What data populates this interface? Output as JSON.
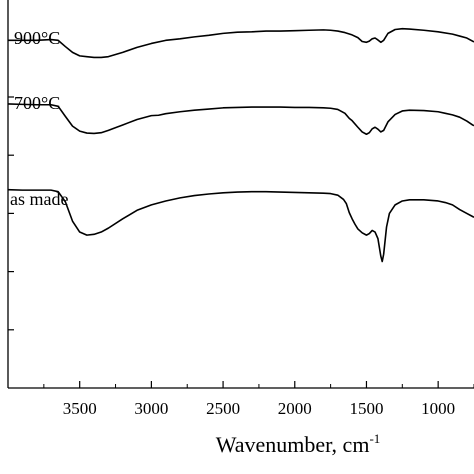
{
  "chart_data": {
    "type": "line",
    "title": "",
    "xlabel": "Wavenumber, cm",
    "xlabel_superscript": "-1",
    "ylabel": "",
    "x_reversed": true,
    "xlim": [
      4000,
      750
    ],
    "xticks": [
      3500,
      3000,
      2500,
      2000,
      1500,
      1000
    ],
    "xtick_labels": [
      "3500",
      "3000",
      "2500",
      "2000",
      "1500",
      "1000"
    ],
    "ylim": [
      0,
      100
    ],
    "y_tick_values": [
      15,
      30,
      45,
      60,
      75
    ],
    "grid": false,
    "series": [
      {
        "name": "900°C",
        "color": "#000000",
        "points": [
          [
            4000,
            89.6
          ],
          [
            3900,
            89.6
          ],
          [
            3800,
            89.6
          ],
          [
            3700,
            89.8
          ],
          [
            3650,
            89.6
          ],
          [
            3600,
            88.0
          ],
          [
            3550,
            86.5
          ],
          [
            3500,
            85.6
          ],
          [
            3450,
            85.4
          ],
          [
            3400,
            85.2
          ],
          [
            3350,
            85.2
          ],
          [
            3300,
            85.4
          ],
          [
            3200,
            86.5
          ],
          [
            3100,
            87.8
          ],
          [
            3000,
            88.8
          ],
          [
            2900,
            89.6
          ],
          [
            2800,
            90.0
          ],
          [
            2700,
            90.5
          ],
          [
            2600,
            90.9
          ],
          [
            2500,
            91.4
          ],
          [
            2400,
            91.7
          ],
          [
            2300,
            91.8
          ],
          [
            2200,
            92.0
          ],
          [
            2100,
            92.0
          ],
          [
            2000,
            92.1
          ],
          [
            1900,
            92.2
          ],
          [
            1800,
            92.3
          ],
          [
            1750,
            92.2
          ],
          [
            1700,
            92.0
          ],
          [
            1650,
            91.6
          ],
          [
            1600,
            91.0
          ],
          [
            1560,
            90.3
          ],
          [
            1530,
            89.3
          ],
          [
            1500,
            89.1
          ],
          [
            1480,
            89.4
          ],
          [
            1460,
            90.0
          ],
          [
            1440,
            90.2
          ],
          [
            1420,
            89.7
          ],
          [
            1400,
            89.1
          ],
          [
            1380,
            89.6
          ],
          [
            1350,
            91.4
          ],
          [
            1300,
            92.4
          ],
          [
            1250,
            92.6
          ],
          [
            1200,
            92.5
          ],
          [
            1100,
            92.2
          ],
          [
            1000,
            91.8
          ],
          [
            900,
            91.2
          ],
          [
            850,
            90.7
          ],
          [
            800,
            90.2
          ],
          [
            750,
            89.2
          ]
        ]
      },
      {
        "name": "700°C",
        "color": "#000000",
        "points": [
          [
            4000,
            73.2
          ],
          [
            3900,
            73.1
          ],
          [
            3800,
            73.0
          ],
          [
            3700,
            73.0
          ],
          [
            3650,
            72.6
          ],
          [
            3600,
            70.0
          ],
          [
            3550,
            67.5
          ],
          [
            3500,
            66.2
          ],
          [
            3450,
            65.7
          ],
          [
            3400,
            65.6
          ],
          [
            3350,
            65.8
          ],
          [
            3300,
            66.4
          ],
          [
            3200,
            67.8
          ],
          [
            3100,
            69.2
          ],
          [
            3000,
            70.2
          ],
          [
            2950,
            70.3
          ],
          [
            2900,
            70.7
          ],
          [
            2800,
            71.2
          ],
          [
            2700,
            71.6
          ],
          [
            2600,
            71.9
          ],
          [
            2500,
            72.2
          ],
          [
            2400,
            72.3
          ],
          [
            2300,
            72.4
          ],
          [
            2200,
            72.4
          ],
          [
            2100,
            72.4
          ],
          [
            2000,
            72.3
          ],
          [
            1900,
            72.3
          ],
          [
            1800,
            72.2
          ],
          [
            1750,
            72.1
          ],
          [
            1700,
            71.8
          ],
          [
            1650,
            70.8
          ],
          [
            1620,
            69.5
          ],
          [
            1600,
            68.9
          ],
          [
            1560,
            67.2
          ],
          [
            1530,
            66.0
          ],
          [
            1500,
            65.4
          ],
          [
            1480,
            65.8
          ],
          [
            1460,
            66.8
          ],
          [
            1440,
            67.2
          ],
          [
            1420,
            66.7
          ],
          [
            1400,
            66.0
          ],
          [
            1380,
            66.4
          ],
          [
            1350,
            68.6
          ],
          [
            1300,
            70.5
          ],
          [
            1250,
            71.4
          ],
          [
            1200,
            71.6
          ],
          [
            1100,
            71.5
          ],
          [
            1000,
            71.2
          ],
          [
            950,
            70.8
          ],
          [
            900,
            70.4
          ],
          [
            850,
            69.8
          ],
          [
            800,
            68.8
          ],
          [
            760,
            67.8
          ],
          [
            750,
            67.6
          ]
        ]
      },
      {
        "name": "as made",
        "color": "#000000",
        "points": [
          [
            4000,
            51.1
          ],
          [
            3900,
            51.0
          ],
          [
            3800,
            51.0
          ],
          [
            3700,
            51.0
          ],
          [
            3650,
            50.6
          ],
          [
            3600,
            48.0
          ],
          [
            3550,
            43.0
          ],
          [
            3500,
            40.2
          ],
          [
            3450,
            39.4
          ],
          [
            3400,
            39.6
          ],
          [
            3350,
            40.2
          ],
          [
            3300,
            41.2
          ],
          [
            3200,
            43.6
          ],
          [
            3100,
            45.8
          ],
          [
            3000,
            47.2
          ],
          [
            2900,
            48.2
          ],
          [
            2800,
            49.0
          ],
          [
            2700,
            49.6
          ],
          [
            2600,
            50.0
          ],
          [
            2500,
            50.3
          ],
          [
            2400,
            50.5
          ],
          [
            2300,
            50.6
          ],
          [
            2200,
            50.6
          ],
          [
            2100,
            50.5
          ],
          [
            2000,
            50.4
          ],
          [
            1900,
            50.3
          ],
          [
            1800,
            50.2
          ],
          [
            1750,
            50.1
          ],
          [
            1700,
            49.7
          ],
          [
            1660,
            48.6
          ],
          [
            1640,
            47.5
          ],
          [
            1620,
            45.2
          ],
          [
            1600,
            43.6
          ],
          [
            1580,
            42.2
          ],
          [
            1560,
            41.0
          ],
          [
            1530,
            40.0
          ],
          [
            1500,
            39.4
          ],
          [
            1480,
            39.8
          ],
          [
            1460,
            40.6
          ],
          [
            1440,
            40.2
          ],
          [
            1420,
            38.5
          ],
          [
            1400,
            34.0
          ],
          [
            1390,
            32.6
          ],
          [
            1380,
            34.5
          ],
          [
            1360,
            41.5
          ],
          [
            1340,
            45.0
          ],
          [
            1300,
            47.2
          ],
          [
            1250,
            48.2
          ],
          [
            1200,
            48.5
          ],
          [
            1100,
            48.5
          ],
          [
            1000,
            48.2
          ],
          [
            950,
            47.8
          ],
          [
            900,
            47.2
          ],
          [
            850,
            46.0
          ],
          [
            800,
            45.0
          ],
          [
            760,
            44.2
          ],
          [
            750,
            44.0
          ]
        ]
      }
    ]
  }
}
